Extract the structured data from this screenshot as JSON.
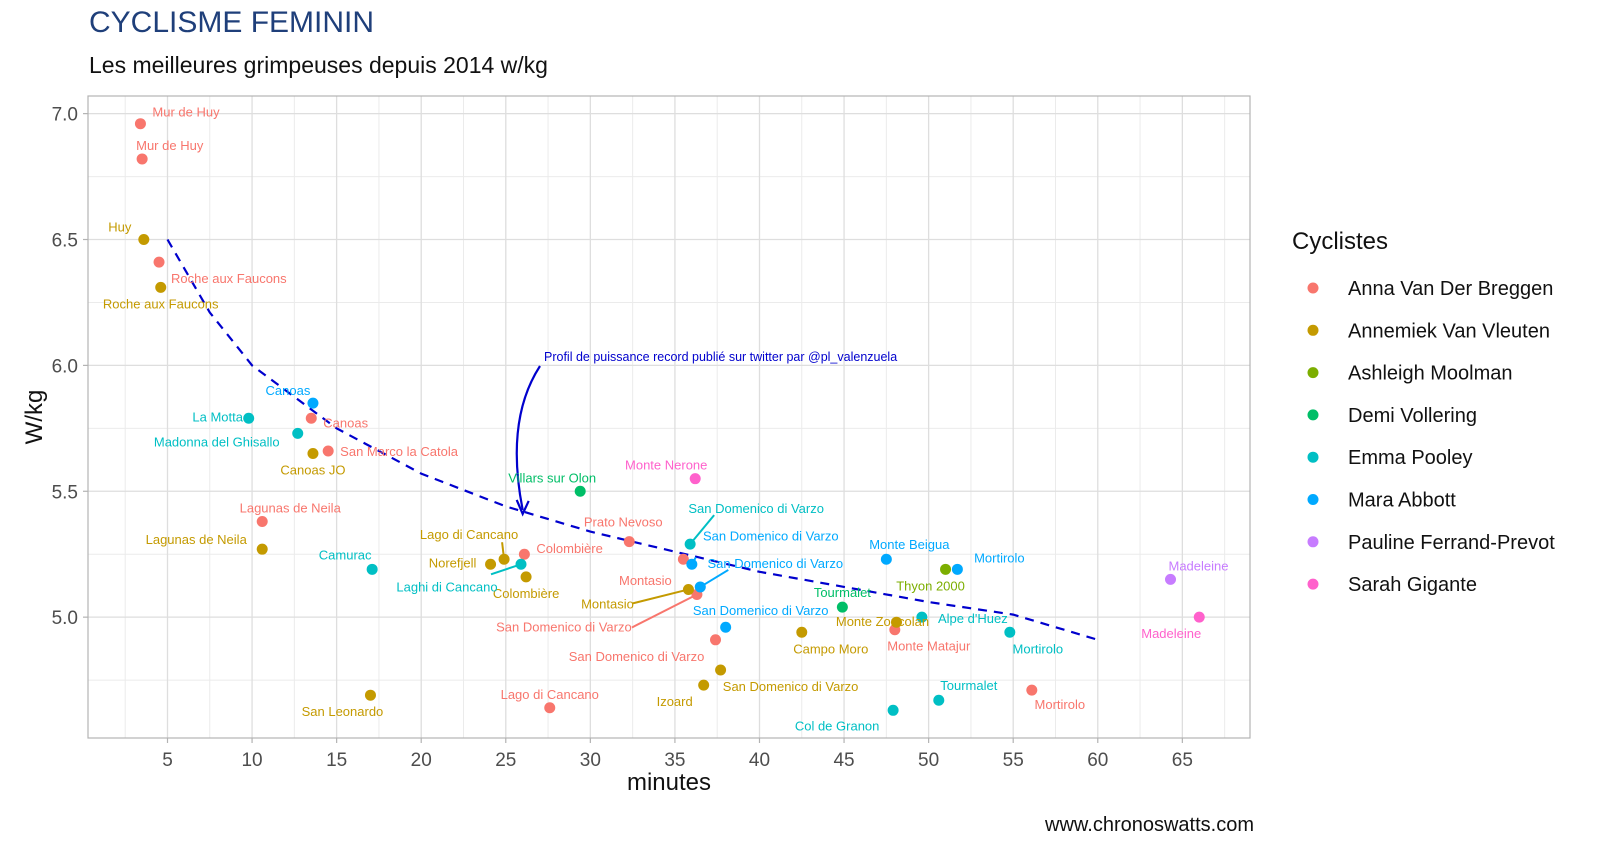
{
  "chart_data": {
    "type": "scatter",
    "title": "CYCLISME FEMININ",
    "subtitle": "Les meilleures grimpeuses depuis 2014 w/kg",
    "xlabel": "minutes",
    "ylabel": "W/kg",
    "caption": "www.chronoswatts.com",
    "xlim": [
      0.3,
      69.0
    ],
    "ylim": [
      4.52,
      7.07
    ],
    "xticks": [
      5,
      10,
      15,
      20,
      25,
      30,
      35,
      40,
      45,
      50,
      55,
      60,
      65
    ],
    "xtick_labels": [
      "5",
      "10",
      "15",
      "20",
      "25",
      "30",
      "35",
      "40",
      "45",
      "50",
      "55",
      "60",
      "65"
    ],
    "yticks": [
      5.0,
      5.5,
      6.0,
      6.5,
      7.0
    ],
    "ytick_labels": [
      "5.0",
      "5.5",
      "6.0",
      "6.5",
      "7.0"
    ],
    "grid": true,
    "legend": {
      "title": "Cyclistes",
      "position": "right"
    },
    "series": [
      {
        "name": "Anna Van Der Breggen",
        "color": "#F8766D",
        "points": [
          {
            "x": 3.4,
            "y": 6.96,
            "label": "Mur de Huy"
          },
          {
            "x": 3.5,
            "y": 6.82,
            "label": "Mur de Huy"
          },
          {
            "x": 4.5,
            "y": 6.41,
            "label": "Roche aux Faucons"
          },
          {
            "x": 13.5,
            "y": 5.79,
            "label": "Canoas"
          },
          {
            "x": 14.5,
            "y": 5.66,
            "label": "San Marco la Catola"
          },
          {
            "x": 10.6,
            "y": 5.38,
            "label": "Lagunas de Neila"
          },
          {
            "x": 26.1,
            "y": 5.25,
            "label": "Colombière"
          },
          {
            "x": 32.3,
            "y": 5.3,
            "label": "Prato Nevoso"
          },
          {
            "x": 35.5,
            "y": 5.23,
            "label": "Montasio"
          },
          {
            "x": 36.3,
            "y": 5.09,
            "label": "San Domenico di Varzo"
          },
          {
            "x": 37.4,
            "y": 4.91,
            "label": "San Domenico di Varzo"
          },
          {
            "x": 27.6,
            "y": 4.64,
            "label": "Lago di Cancano"
          },
          {
            "x": 48.0,
            "y": 4.95,
            "label": "Monte Matajur"
          },
          {
            "x": 56.1,
            "y": 4.71,
            "label": "Mortirolo"
          }
        ]
      },
      {
        "name": "Annemiek Van Vleuten",
        "color": "#C49A00",
        "points": [
          {
            "x": 3.6,
            "y": 6.5,
            "label": "Huy"
          },
          {
            "x": 4.6,
            "y": 6.31,
            "label": "Roche aux Faucons"
          },
          {
            "x": 13.6,
            "y": 5.65,
            "label": "Canoas JO"
          },
          {
            "x": 10.6,
            "y": 5.27,
            "label": "Lagunas de Neila"
          },
          {
            "x": 24.9,
            "y": 5.23,
            "label": "Lago di Cancano"
          },
          {
            "x": 24.1,
            "y": 5.21,
            "label": "Norefjell"
          },
          {
            "x": 26.2,
            "y": 5.16,
            "label": "Colombière"
          },
          {
            "x": 35.8,
            "y": 5.11,
            "label": "Montasio"
          },
          {
            "x": 17.0,
            "y": 4.69,
            "label": "San Leonardo"
          },
          {
            "x": 42.5,
            "y": 4.94,
            "label": "Campo Moro"
          },
          {
            "x": 48.1,
            "y": 4.98,
            "label": "Monte Zoncolan"
          },
          {
            "x": 37.7,
            "y": 4.79,
            "label": "San Domenico di Varzo"
          },
          {
            "x": 36.7,
            "y": 4.73,
            "label": "Izoard"
          }
        ]
      },
      {
        "name": "Ashleigh Moolman",
        "color": "#7CAE00",
        "points": [
          {
            "x": 51.0,
            "y": 5.19,
            "label": "Thyon 2000"
          }
        ]
      },
      {
        "name": "Demi Vollering",
        "color": "#00BE67",
        "points": [
          {
            "x": 29.4,
            "y": 5.5,
            "label": "Villars sur Olon"
          },
          {
            "x": 44.9,
            "y": 5.04,
            "label": "Tourmalet"
          }
        ]
      },
      {
        "name": "Emma Pooley",
        "color": "#00BFC4",
        "points": [
          {
            "x": 9.8,
            "y": 5.79,
            "label": "La Motta"
          },
          {
            "x": 12.7,
            "y": 5.73,
            "label": "Madonna del Ghisallo"
          },
          {
            "x": 17.1,
            "y": 5.19,
            "label": "Camurac"
          },
          {
            "x": 25.9,
            "y": 5.21,
            "label": "Laghi di Cancano"
          },
          {
            "x": 35.9,
            "y": 5.29,
            "label": "San Domenico di Varzo"
          },
          {
            "x": 49.6,
            "y": 5.0,
            "label": "Alpe d'Huez"
          },
          {
            "x": 54.8,
            "y": 4.94,
            "label": "Mortirolo"
          },
          {
            "x": 50.6,
            "y": 4.67,
            "label": "Tourmalet"
          },
          {
            "x": 47.9,
            "y": 4.63,
            "label": "Col de Granon"
          }
        ]
      },
      {
        "name": "Mara Abbott",
        "color": "#00A9FF",
        "points": [
          {
            "x": 13.6,
            "y": 5.85,
            "label": "Canoas"
          },
          {
            "x": 36.0,
            "y": 5.21,
            "label": "San Domenico di Varzo"
          },
          {
            "x": 36.5,
            "y": 5.12,
            "label": "San Domenico di Varzo"
          },
          {
            "x": 38.0,
            "y": 4.96,
            "label": "San Domenico di Varzo"
          },
          {
            "x": 47.5,
            "y": 5.23,
            "label": "Monte Beigua"
          },
          {
            "x": 51.7,
            "y": 5.19,
            "label": "Mortirolo"
          }
        ]
      },
      {
        "name": "Pauline Ferrand-Prevot",
        "color": "#C77CFF",
        "points": [
          {
            "x": 64.3,
            "y": 5.15,
            "label": "Madeleine"
          }
        ]
      },
      {
        "name": "Sarah Gigante",
        "color": "#FF61CC",
        "points": [
          {
            "x": 36.2,
            "y": 5.55,
            "label": "Monte Nerone"
          },
          {
            "x": 66.0,
            "y": 5.0,
            "label": "Madeleine"
          }
        ]
      }
    ],
    "trend_line": {
      "style": "dashed",
      "color": "#0000CD",
      "x_range": [
        5,
        60
      ],
      "points": [
        {
          "x": 5,
          "y": 6.5
        },
        {
          "x": 7.5,
          "y": 6.21
        },
        {
          "x": 10,
          "y": 6.0
        },
        {
          "x": 15,
          "y": 5.75
        },
        {
          "x": 20,
          "y": 5.57
        },
        {
          "x": 25,
          "y": 5.44
        },
        {
          "x": 30,
          "y": 5.34
        },
        {
          "x": 35,
          "y": 5.26
        },
        {
          "x": 40,
          "y": 5.18
        },
        {
          "x": 45,
          "y": 5.12
        },
        {
          "x": 50,
          "y": 5.06
        },
        {
          "x": 55,
          "y": 5.01
        },
        {
          "x": 60,
          "y": 4.91
        }
      ]
    },
    "annotation": {
      "text": "Profil de puissance record publié sur twitter par @pl_valenzuela",
      "color": "#0000CD",
      "arrow_to": {
        "x": 26.0,
        "y": 5.41
      }
    }
  }
}
